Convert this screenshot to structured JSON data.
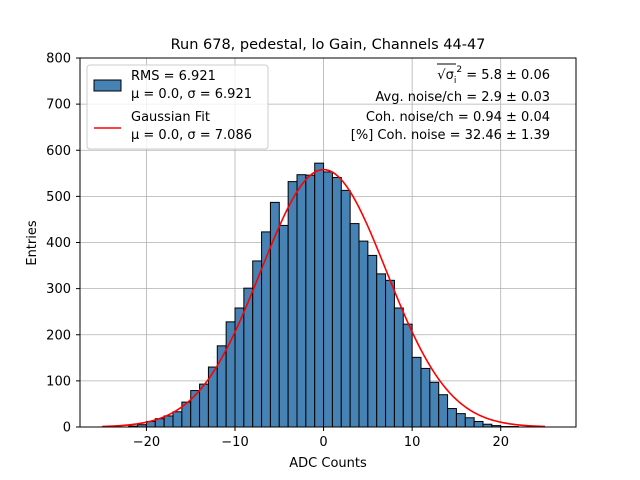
{
  "chart_data": {
    "type": "bar",
    "title": "Run 678, pedestal, lo Gain, Channels 44-47",
    "xlabel": "ADC Counts",
    "ylabel": "Entries",
    "xlim": [
      -27.5,
      28.5
    ],
    "ylim": [
      0,
      800
    ],
    "xticks": [
      -20,
      -10,
      0,
      10,
      20
    ],
    "yticks": [
      0,
      100,
      200,
      300,
      400,
      500,
      600,
      700,
      800
    ],
    "xtick_labels": [
      "−20",
      "−10",
      "0",
      "10",
      "20"
    ],
    "ytick_labels": [
      "0",
      "100",
      "200",
      "300",
      "400",
      "500",
      "600",
      "700",
      "800"
    ],
    "grid": true,
    "legend_position": "top-left",
    "histogram": {
      "name_lines": [
        "RMS = 6.921",
        "μ = 0.0, σ = 6.921"
      ],
      "color": "#4682b4",
      "edge_color": "#000000",
      "bin_width": 1,
      "bin_starts": [
        -22,
        -21,
        -20,
        -19,
        -18,
        -17,
        -16,
        -15,
        -14,
        -13,
        -12,
        -11,
        -10,
        -9,
        -8,
        -7,
        -6,
        -5,
        -4,
        -3,
        -2,
        -1,
        0,
        1,
        2,
        3,
        4,
        5,
        6,
        7,
        8,
        9,
        10,
        11,
        12,
        13,
        14,
        15,
        16,
        17,
        18,
        19,
        20,
        21,
        22
      ],
      "counts": [
        2,
        5,
        12,
        18,
        24,
        33,
        54,
        79,
        93,
        130,
        176,
        228,
        258,
        301,
        360,
        423,
        487,
        437,
        532,
        547,
        546,
        572,
        553,
        541,
        513,
        441,
        403,
        372,
        332,
        318,
        258,
        223,
        151,
        127,
        97,
        70,
        40,
        29,
        20,
        12,
        6,
        3,
        1,
        1,
        0
      ]
    },
    "fit": {
      "name_lines": [
        "Gaussian Fit",
        "μ = 0.0, σ = 7.086"
      ],
      "color": "#ff0000",
      "type": "gaussian",
      "mu": 0.0,
      "sigma": 7.086,
      "amplitude": 558,
      "x_range": [
        -25,
        25
      ]
    },
    "annotations": [
      {
        "parts": [
          "√",
          "σ",
          "i",
          "2",
          " = 5.8 ± 0.06"
        ]
      },
      {
        "text": "Avg. noise/ch = 2.9 ± 0.03"
      },
      {
        "text": "Coh. noise/ch = 0.94 ± 0.04"
      },
      {
        "text": "[%] Coh. noise = 32.46 ± 1.39"
      }
    ]
  }
}
